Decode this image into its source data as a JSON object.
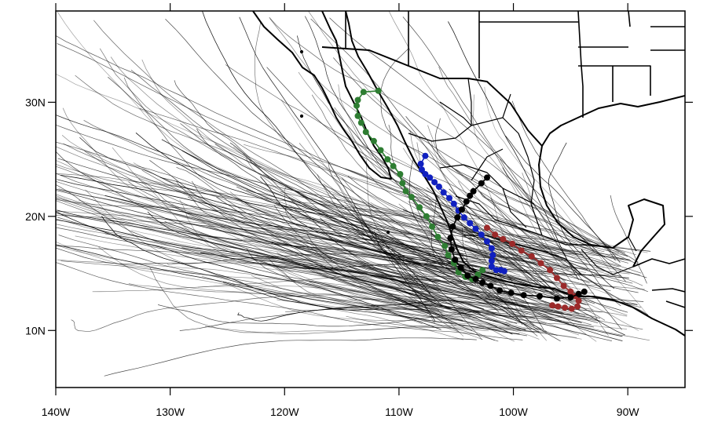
{
  "map": {
    "lat_labels": [
      "10N",
      "20N",
      "30N"
    ],
    "lon_labels": [
      "140W",
      "130W",
      "120W",
      "110W",
      "100W",
      "90W"
    ],
    "lat_values": [
      10,
      20,
      30
    ],
    "lon_values": [
      -140,
      -130,
      -120,
      -110,
      -100,
      -90
    ],
    "extent": {
      "lon_min": -140,
      "lon_max": -85,
      "lat_min": 5,
      "lat_max": 38
    },
    "background_tracks": {
      "color": "#000000",
      "description_count": 320
    },
    "highlighted_tracks": [
      {
        "color": "#2e7d32",
        "points": [
          [
            -111.8,
            31.0
          ],
          [
            -113.1,
            30.9
          ],
          [
            -113.6,
            30.2
          ],
          [
            -113.7,
            29.7
          ],
          [
            -113.6,
            28.8
          ],
          [
            -113.3,
            28.2
          ],
          [
            -112.9,
            27.4
          ],
          [
            -112.2,
            26.6
          ],
          [
            -111.6,
            25.8
          ],
          [
            -111.0,
            25.0
          ],
          [
            -110.5,
            24.4
          ],
          [
            -109.9,
            23.7
          ],
          [
            -109.7,
            22.9
          ],
          [
            -109.4,
            22.2
          ],
          [
            -108.9,
            21.7
          ],
          [
            -108.2,
            20.8
          ],
          [
            -107.6,
            20.0
          ],
          [
            -107.1,
            19.1
          ],
          [
            -106.6,
            18.2
          ],
          [
            -106.0,
            17.4
          ],
          [
            -105.7,
            16.6
          ],
          [
            -105.2,
            15.9
          ],
          [
            -104.8,
            15.1
          ],
          [
            -104.2,
            14.7
          ],
          [
            -103.6,
            14.5
          ],
          [
            -103.1,
            14.9
          ],
          [
            -102.7,
            15.3
          ]
        ]
      },
      {
        "color": "#1020c0",
        "points": [
          [
            -107.7,
            25.3
          ],
          [
            -108.1,
            24.6
          ],
          [
            -108.0,
            24.1
          ],
          [
            -107.7,
            23.7
          ],
          [
            -107.3,
            23.4
          ],
          [
            -106.9,
            23.0
          ],
          [
            -106.5,
            22.6
          ],
          [
            -106.1,
            22.1
          ],
          [
            -105.6,
            21.6
          ],
          [
            -105.2,
            21.1
          ],
          [
            -104.8,
            20.5
          ],
          [
            -104.3,
            19.9
          ],
          [
            -103.8,
            19.4
          ],
          [
            -103.3,
            18.9
          ],
          [
            -102.8,
            18.4
          ],
          [
            -102.3,
            17.8
          ],
          [
            -101.9,
            17.2
          ],
          [
            -101.8,
            16.6
          ],
          [
            -101.9,
            16.1
          ],
          [
            -101.9,
            15.6
          ],
          [
            -101.5,
            15.3
          ],
          [
            -101.1,
            15.3
          ],
          [
            -100.8,
            15.2
          ]
        ]
      },
      {
        "color": "#9b2a2a",
        "points": [
          [
            -102.3,
            19.0
          ],
          [
            -101.6,
            18.4
          ],
          [
            -100.9,
            18.0
          ],
          [
            -100.1,
            17.6
          ],
          [
            -99.3,
            17.0
          ],
          [
            -98.4,
            16.5
          ],
          [
            -97.6,
            15.9
          ],
          [
            -96.8,
            15.3
          ],
          [
            -96.2,
            14.6
          ],
          [
            -95.6,
            13.9
          ],
          [
            -95.0,
            13.4
          ],
          [
            -94.6,
            13.0
          ],
          [
            -94.3,
            12.6
          ],
          [
            -94.4,
            12.1
          ],
          [
            -94.9,
            11.9
          ],
          [
            -95.5,
            12.0
          ],
          [
            -96.1,
            12.1
          ],
          [
            -96.6,
            12.2
          ]
        ]
      },
      {
        "color": "#000000",
        "points": [
          [
            -93.8,
            13.4
          ],
          [
            -94.3,
            13.2
          ],
          [
            -95.0,
            12.9
          ],
          [
            -96.2,
            12.8
          ],
          [
            -97.7,
            13.0
          ],
          [
            -99.1,
            13.1
          ],
          [
            -100.2,
            13.3
          ],
          [
            -101.2,
            13.5
          ],
          [
            -102.0,
            13.9
          ],
          [
            -102.7,
            14.2
          ],
          [
            -103.3,
            14.5
          ],
          [
            -104.0,
            14.8
          ],
          [
            -104.6,
            15.5
          ],
          [
            -105.1,
            16.2
          ],
          [
            -105.4,
            17.1
          ],
          [
            -105.5,
            18.1
          ],
          [
            -105.3,
            19.1
          ],
          [
            -104.9,
            19.9
          ],
          [
            -104.5,
            20.6
          ],
          [
            -104.1,
            21.3
          ],
          [
            -103.8,
            21.8
          ],
          [
            -103.5,
            22.2
          ],
          [
            -102.8,
            22.9
          ],
          [
            -102.3,
            23.4
          ]
        ]
      }
    ]
  }
}
